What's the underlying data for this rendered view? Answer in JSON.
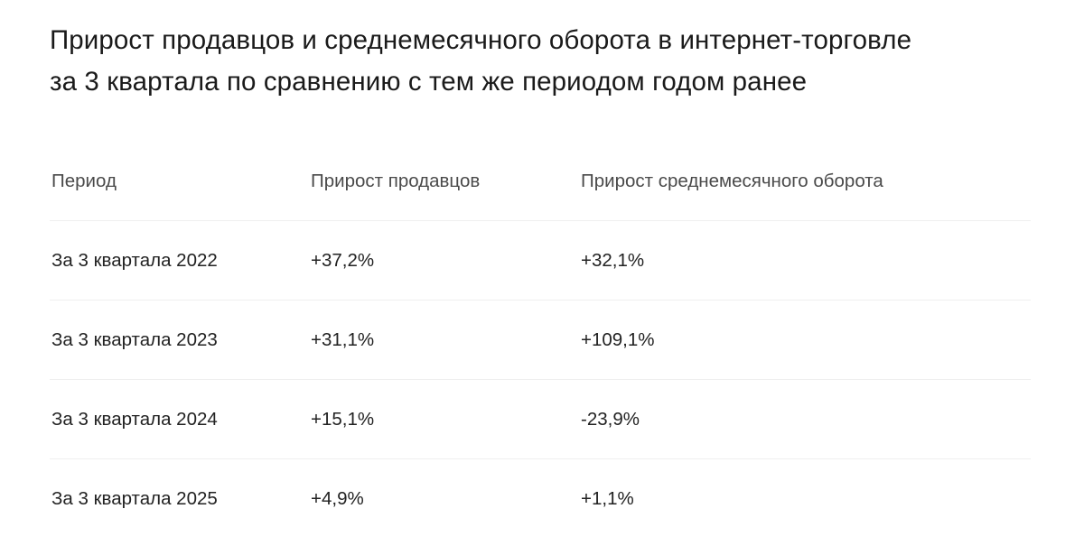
{
  "title": {
    "line1": "Прирост продавцов и среднемесячного оборота в интернет-торговле",
    "line2": "за 3 квартала по сравнению с тем же периодом годом ранее"
  },
  "table": {
    "columns": [
      "Период",
      "Прирост продавцов",
      "Прирост среднемесячного оборота"
    ],
    "rows": [
      [
        "За 3 квартала 2022",
        "+37,2%",
        "+32,1%"
      ],
      [
        "За 3 квартала 2023",
        "+31,1%",
        "+109,1%"
      ],
      [
        "За 3 квартала 2024",
        "+15,1%",
        "-23,9%"
      ],
      [
        "За 3 квартала 2025",
        "+4,9%",
        "+1,1%"
      ]
    ]
  }
}
